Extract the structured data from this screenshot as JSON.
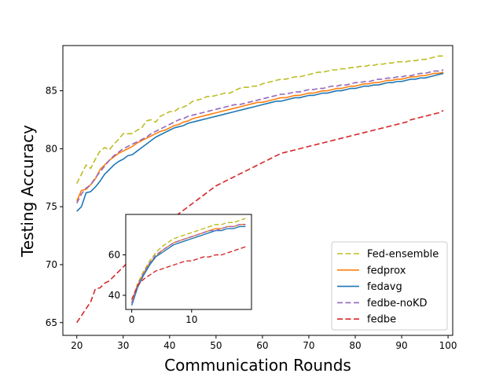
{
  "chart_data": [
    {
      "type": "line",
      "title": "",
      "xlabel": "Communication Rounds",
      "ylabel": "Testing Accuracy",
      "xlim": [
        17,
        101
      ],
      "ylim": [
        63.9,
        88.9
      ],
      "xticks": [
        20,
        30,
        40,
        50,
        60,
        70,
        80,
        90,
        100
      ],
      "yticks": [
        65,
        70,
        75,
        80,
        85
      ],
      "legend_position": "lower-right",
      "series": [
        {
          "name": "Fed-ensemble",
          "style": "dashed",
          "color": "#bcbd22",
          "x": [
            20,
            21,
            22,
            23,
            24,
            25,
            26,
            27,
            28,
            29,
            30,
            31,
            32,
            33,
            34,
            35,
            36,
            37,
            38,
            39,
            40,
            41,
            42,
            43,
            44,
            45,
            46,
            47,
            48,
            49,
            50,
            51,
            52,
            53,
            54,
            55,
            56,
            57,
            58,
            59,
            60,
            61,
            62,
            63,
            64,
            65,
            66,
            67,
            68,
            69,
            70,
            71,
            72,
            73,
            74,
            75,
            76,
            77,
            78,
            79,
            80,
            81,
            82,
            83,
            84,
            85,
            86,
            87,
            88,
            89,
            90,
            91,
            92,
            93,
            94,
            95,
            96,
            97,
            98,
            99
          ],
          "values": [
            77.0,
            77.8,
            78.6,
            78.3,
            79.1,
            79.8,
            80.1,
            79.9,
            80.4,
            80.8,
            81.3,
            81.3,
            81.3,
            81.6,
            81.8,
            82.4,
            82.5,
            82.3,
            82.8,
            83.0,
            83.2,
            83.2,
            83.5,
            83.6,
            83.8,
            84.1,
            84.2,
            84.3,
            84.5,
            84.5,
            84.6,
            84.7,
            84.8,
            84.8,
            85.0,
            85.2,
            85.3,
            85.3,
            85.4,
            85.4,
            85.6,
            85.7,
            85.8,
            85.9,
            86.0,
            86.0,
            86.1,
            86.2,
            86.2,
            86.3,
            86.4,
            86.5,
            86.6,
            86.6,
            86.7,
            86.8,
            86.8,
            86.9,
            86.9,
            87.0,
            87.0,
            87.1,
            87.1,
            87.2,
            87.2,
            87.3,
            87.3,
            87.4,
            87.4,
            87.5,
            87.5,
            87.5,
            87.6,
            87.6,
            87.7,
            87.7,
            87.8,
            87.9,
            88.0,
            88.0
          ]
        },
        {
          "name": "fedprox",
          "style": "solid",
          "color": "#ff7f0e",
          "x": [
            20,
            21,
            22,
            23,
            24,
            25,
            26,
            27,
            28,
            29,
            30,
            31,
            32,
            33,
            34,
            35,
            36,
            37,
            38,
            39,
            40,
            41,
            42,
            43,
            44,
            45,
            46,
            47,
            48,
            49,
            50,
            51,
            52,
            53,
            54,
            55,
            56,
            57,
            58,
            59,
            60,
            61,
            62,
            63,
            64,
            65,
            66,
            67,
            68,
            69,
            70,
            71,
            72,
            73,
            74,
            75,
            76,
            77,
            78,
            79,
            80,
            81,
            82,
            83,
            84,
            85,
            86,
            87,
            88,
            89,
            90,
            91,
            92,
            93,
            94,
            95,
            96,
            97,
            98,
            99
          ],
          "values": [
            75.5,
            76.4,
            76.5,
            76.9,
            77.4,
            78.2,
            78.6,
            79.0,
            79.3,
            79.6,
            79.8,
            80.0,
            80.2,
            80.5,
            80.7,
            80.9,
            81.1,
            81.3,
            81.5,
            81.6,
            81.8,
            82.0,
            82.1,
            82.3,
            82.4,
            82.6,
            82.7,
            82.8,
            82.9,
            83.0,
            83.1,
            83.2,
            83.3,
            83.4,
            83.5,
            83.6,
            83.7,
            83.8,
            83.9,
            84.0,
            84.0,
            84.1,
            84.2,
            84.3,
            84.4,
            84.4,
            84.5,
            84.6,
            84.6,
            84.7,
            84.8,
            84.8,
            84.9,
            85.0,
            85.0,
            85.1,
            85.2,
            85.2,
            85.3,
            85.4,
            85.4,
            85.5,
            85.6,
            85.6,
            85.7,
            85.7,
            85.8,
            85.9,
            85.9,
            86.0,
            86.0,
            86.1,
            86.2,
            86.2,
            86.3,
            86.3,
            86.4,
            86.5,
            86.5,
            86.6
          ]
        },
        {
          "name": "fedavg",
          "style": "solid",
          "color": "#1f77b4",
          "x": [
            20,
            21,
            22,
            23,
            24,
            25,
            26,
            27,
            28,
            29,
            30,
            31,
            32,
            33,
            34,
            35,
            36,
            37,
            38,
            39,
            40,
            41,
            42,
            43,
            44,
            45,
            46,
            47,
            48,
            49,
            50,
            51,
            52,
            53,
            54,
            55,
            56,
            57,
            58,
            59,
            60,
            61,
            62,
            63,
            64,
            65,
            66,
            67,
            68,
            69,
            70,
            71,
            72,
            73,
            74,
            75,
            76,
            77,
            78,
            79,
            80,
            81,
            82,
            83,
            84,
            85,
            86,
            87,
            88,
            89,
            90,
            91,
            92,
            93,
            94,
            95,
            96,
            97,
            98,
            99
          ],
          "values": [
            74.6,
            75.0,
            76.2,
            76.3,
            76.7,
            77.2,
            77.8,
            78.2,
            78.6,
            78.9,
            79.1,
            79.4,
            79.5,
            79.8,
            80.1,
            80.4,
            80.7,
            81.0,
            81.2,
            81.4,
            81.6,
            81.8,
            81.9,
            82.0,
            82.2,
            82.3,
            82.4,
            82.5,
            82.6,
            82.7,
            82.8,
            82.9,
            83.0,
            83.1,
            83.2,
            83.3,
            83.4,
            83.5,
            83.6,
            83.7,
            83.8,
            83.9,
            84.0,
            84.1,
            84.1,
            84.2,
            84.3,
            84.4,
            84.4,
            84.5,
            84.6,
            84.6,
            84.7,
            84.8,
            84.8,
            84.9,
            85.0,
            85.0,
            85.1,
            85.2,
            85.2,
            85.3,
            85.4,
            85.4,
            85.5,
            85.5,
            85.6,
            85.7,
            85.7,
            85.8,
            85.8,
            85.9,
            86.0,
            86.0,
            86.1,
            86.1,
            86.2,
            86.3,
            86.4,
            86.5
          ]
        },
        {
          "name": "fedbe-noKD",
          "style": "dashed",
          "color": "#9467bd",
          "x": [
            20,
            21,
            22,
            23,
            24,
            25,
            26,
            27,
            28,
            29,
            30,
            31,
            32,
            33,
            34,
            35,
            36,
            37,
            38,
            39,
            40,
            41,
            42,
            43,
            44,
            45,
            46,
            47,
            48,
            49,
            50,
            51,
            52,
            53,
            54,
            55,
            56,
            57,
            58,
            59,
            60,
            61,
            62,
            63,
            64,
            65,
            66,
            67,
            68,
            69,
            70,
            71,
            72,
            73,
            74,
            75,
            76,
            77,
            78,
            79,
            80,
            81,
            82,
            83,
            84,
            85,
            86,
            87,
            88,
            89,
            90,
            91,
            92,
            93,
            94,
            95,
            96,
            97,
            98,
            99
          ],
          "values": [
            75.3,
            76.1,
            76.6,
            76.9,
            77.5,
            78.0,
            78.5,
            79.0,
            79.4,
            79.7,
            80.0,
            80.2,
            80.4,
            80.6,
            80.8,
            81.0,
            81.3,
            81.5,
            81.7,
            81.9,
            82.1,
            82.3,
            82.5,
            82.6,
            82.8,
            82.9,
            83.0,
            83.1,
            83.2,
            83.3,
            83.4,
            83.5,
            83.6,
            83.7,
            83.8,
            83.8,
            83.9,
            84.0,
            84.1,
            84.2,
            84.3,
            84.4,
            84.5,
            84.6,
            84.7,
            84.7,
            84.8,
            84.9,
            84.9,
            85.0,
            85.1,
            85.1,
            85.2,
            85.2,
            85.3,
            85.4,
            85.4,
            85.5,
            85.5,
            85.6,
            85.7,
            85.7,
            85.8,
            85.8,
            85.9,
            86.0,
            86.0,
            86.1,
            86.1,
            86.2,
            86.2,
            86.3,
            86.3,
            86.4,
            86.5,
            86.5,
            86.6,
            86.7,
            86.7,
            86.8
          ]
        },
        {
          "name": "fedbe",
          "style": "dashed",
          "color": "#d62728",
          "x": [
            20,
            21,
            22,
            23,
            24,
            25,
            26,
            27,
            28,
            29,
            30,
            31,
            32,
            33,
            34,
            35,
            36,
            37,
            38,
            39,
            40,
            41,
            42,
            43,
            44,
            45,
            46,
            47,
            48,
            49,
            50,
            51,
            52,
            53,
            54,
            55,
            56,
            57,
            58,
            59,
            60,
            61,
            62,
            63,
            64,
            65,
            66,
            67,
            68,
            69,
            70,
            71,
            72,
            73,
            74,
            75,
            76,
            77,
            78,
            79,
            80,
            81,
            82,
            83,
            84,
            85,
            86,
            87,
            88,
            89,
            90,
            91,
            92,
            93,
            94,
            95,
            96,
            97,
            98,
            99
          ],
          "values": [
            65.0,
            65.6,
            66.2,
            66.8,
            67.9,
            68.0,
            68.4,
            68.6,
            69.0,
            69.4,
            69.8,
            70.2,
            70.6,
            71.0,
            71.4,
            71.8,
            72.2,
            72.6,
            73.0,
            73.4,
            73.8,
            74.1,
            74.4,
            74.7,
            75.0,
            75.3,
            75.6,
            75.9,
            76.2,
            76.5,
            76.8,
            77.0,
            77.2,
            77.4,
            77.6,
            77.8,
            78.0,
            78.2,
            78.4,
            78.6,
            78.8,
            79.0,
            79.2,
            79.4,
            79.6,
            79.7,
            79.8,
            79.9,
            80.0,
            80.1,
            80.2,
            80.3,
            80.4,
            80.5,
            80.6,
            80.7,
            80.8,
            80.9,
            81.0,
            81.1,
            81.2,
            81.3,
            81.4,
            81.5,
            81.6,
            81.7,
            81.8,
            81.9,
            82.0,
            82.1,
            82.2,
            82.3,
            82.5,
            82.6,
            82.7,
            82.8,
            82.9,
            83.0,
            83.1,
            83.3
          ]
        }
      ]
    },
    {
      "type": "line",
      "role": "inset",
      "xlim": [
        -1,
        20
      ],
      "ylim": [
        33,
        80
      ],
      "xticks": [
        0,
        10
      ],
      "yticks": [
        40,
        60
      ],
      "series": [
        {
          "name": "Fed-ensemble",
          "style": "dashed",
          "color": "#bcbd22",
          "x": [
            0,
            1,
            2,
            3,
            4,
            5,
            6,
            7,
            8,
            9,
            10,
            11,
            12,
            13,
            14,
            15,
            16,
            17,
            18,
            19
          ],
          "values": [
            37,
            46,
            52,
            57,
            61,
            64,
            66,
            68,
            69,
            70,
            71,
            72,
            73,
            74,
            75,
            75,
            76,
            76,
            77,
            78
          ]
        },
        {
          "name": "fedprox",
          "style": "solid",
          "color": "#ff7f0e",
          "x": [
            0,
            1,
            2,
            3,
            4,
            5,
            6,
            7,
            8,
            9,
            10,
            11,
            12,
            13,
            14,
            15,
            16,
            17,
            18,
            19
          ],
          "values": [
            36,
            45,
            51,
            56,
            59,
            62,
            64,
            66,
            67,
            68,
            69,
            70,
            71,
            72,
            73,
            73,
            74,
            74,
            75,
            75
          ]
        },
        {
          "name": "fedavg",
          "style": "solid",
          "color": "#1f77b4",
          "x": [
            0,
            1,
            2,
            3,
            4,
            5,
            6,
            7,
            8,
            9,
            10,
            11,
            12,
            13,
            14,
            15,
            16,
            17,
            18,
            19
          ],
          "values": [
            35,
            44,
            50,
            55,
            59,
            61,
            63,
            65,
            66,
            67,
            68,
            69,
            70,
            71,
            72,
            72,
            73,
            73,
            74,
            74
          ]
        },
        {
          "name": "fedbe-noKD",
          "style": "dashed",
          "color": "#9467bd",
          "x": [
            0,
            1,
            2,
            3,
            4,
            5,
            6,
            7,
            8,
            9,
            10,
            11,
            12,
            13,
            14,
            15,
            16,
            17,
            18,
            19
          ],
          "values": [
            36,
            45,
            51,
            56,
            60,
            62,
            64,
            66,
            67,
            68,
            69,
            70,
            71,
            72,
            72,
            73,
            74,
            74,
            75,
            75
          ]
        },
        {
          "name": "fedbe",
          "style": "dashed",
          "color": "#d62728",
          "x": [
            0,
            1,
            2,
            3,
            4,
            5,
            6,
            7,
            8,
            9,
            10,
            11,
            12,
            13,
            14,
            15,
            16,
            17,
            18,
            19
          ],
          "values": [
            38,
            45,
            48,
            50,
            52,
            53,
            54,
            55,
            56,
            57,
            57,
            58,
            59,
            59,
            60,
            60,
            61,
            62,
            63,
            64
          ]
        }
      ]
    }
  ]
}
